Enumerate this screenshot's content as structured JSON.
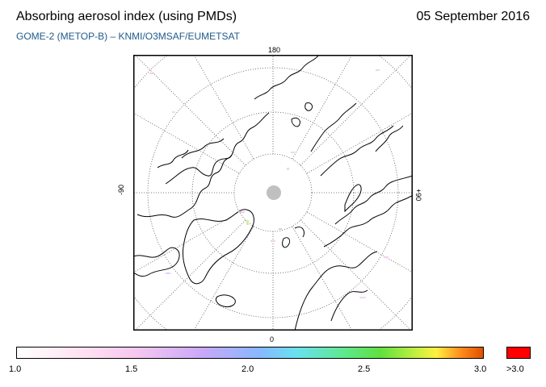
{
  "header": {
    "title": "Absorbing aerosol index (using PMDs)",
    "date": "05 September 2016",
    "subtitle": "GOME-2 (METOP-B)  –  KNMI/O3MSAF/EUMETSAT"
  },
  "map": {
    "projection": "north polar stereographic",
    "labels": {
      "top": "180",
      "bottom": "0",
      "left": "-90",
      "right": "+90"
    }
  },
  "colorbar": {
    "ticks": [
      "1.0",
      "1.5",
      "2.0",
      "2.5",
      "3.0"
    ],
    "overflow_label": ">3.0",
    "overflow_color": "#ff0000"
  },
  "colors": {
    "subtitle": "#1f5a8a",
    "no_data": "#c0c0c0"
  }
}
